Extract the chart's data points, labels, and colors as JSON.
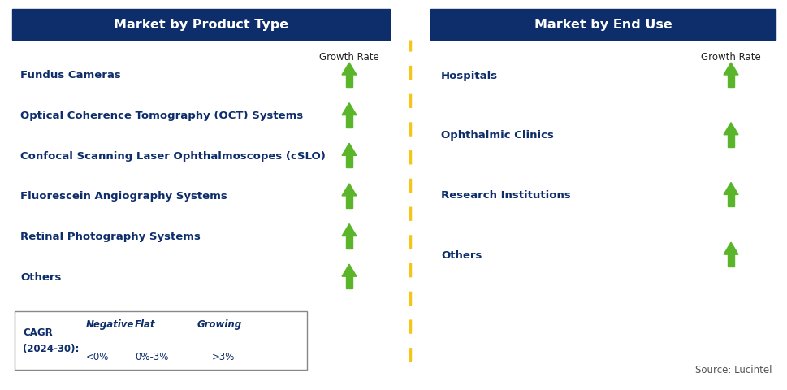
{
  "title_left": "Market by Product Type",
  "title_right": "Market by End Use",
  "header_bg_color": "#0d2d6b",
  "header_text_color": "#ffffff",
  "left_items": [
    "Fundus Cameras",
    "Optical Coherence Tomography (OCT) Systems",
    "Confocal Scanning Laser Ophthalmoscopes (cSLO)",
    "Fluorescein Angiography Systems",
    "Retinal Photography Systems",
    "Others"
  ],
  "right_items": [
    "Hospitals",
    "Ophthalmic Clinics",
    "Research Institutions",
    "Others"
  ],
  "item_text_color": "#0d2d6b",
  "growth_rate_label": "Growth Rate",
  "legend_cagr_line1": "CAGR",
  "legend_cagr_line2": "(2024-30):",
  "legend_negative_label": "Negative",
  "legend_negative_range": "<0%",
  "legend_flat_label": "Flat",
  "legend_flat_range": "0%-3%",
  "legend_growing_label": "Growing",
  "legend_growing_range": ">3%",
  "source_text": "Source: Lucintel",
  "arrow_green_color": "#5ab52a",
  "arrow_red_color": "#cc1100",
  "arrow_yellow_color": "#f5a800",
  "divider_color": "#f5c518",
  "bg_color": "#ffffff",
  "border_color": "#888888"
}
